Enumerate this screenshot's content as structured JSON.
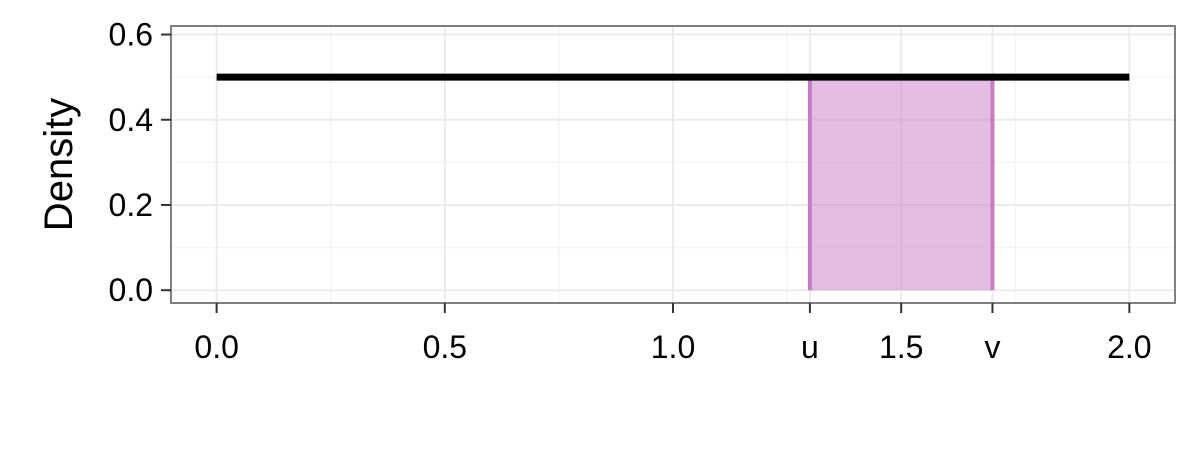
{
  "chart_data": {
    "type": "area",
    "title": "",
    "xlabel": "",
    "ylabel": "Density",
    "xlim": [
      -0.1,
      2.1
    ],
    "ylim": [
      -0.03,
      0.62
    ],
    "x_ticks": [
      {
        "value": 0.0,
        "label": "0.0"
      },
      {
        "value": 0.5,
        "label": "0.5"
      },
      {
        "value": 1.0,
        "label": "1.0"
      },
      {
        "value": 1.3,
        "label": "u"
      },
      {
        "value": 1.5,
        "label": "1.5"
      },
      {
        "value": 1.7,
        "label": "v"
      },
      {
        "value": 2.0,
        "label": "2.0"
      }
    ],
    "y_ticks": [
      {
        "value": 0.0,
        "label": "0.0"
      },
      {
        "value": 0.2,
        "label": "0.2"
      },
      {
        "value": 0.4,
        "label": "0.4"
      },
      {
        "value": 0.6,
        "label": "0.6"
      }
    ],
    "density_line": {
      "x": [
        0,
        2
      ],
      "y": [
        0.5,
        0.5
      ],
      "color": "#000000"
    },
    "shaded_region": {
      "x": [
        1.3,
        1.7
      ],
      "y": 0.5,
      "color": "#c77cc6"
    },
    "grid": true,
    "legend": "none"
  },
  "colors": {
    "panel_background": "#ffffff",
    "grid_major": "#ebebeb",
    "grid_minor": "#f5f5f5",
    "panel_border": "#7f7f7f"
  }
}
